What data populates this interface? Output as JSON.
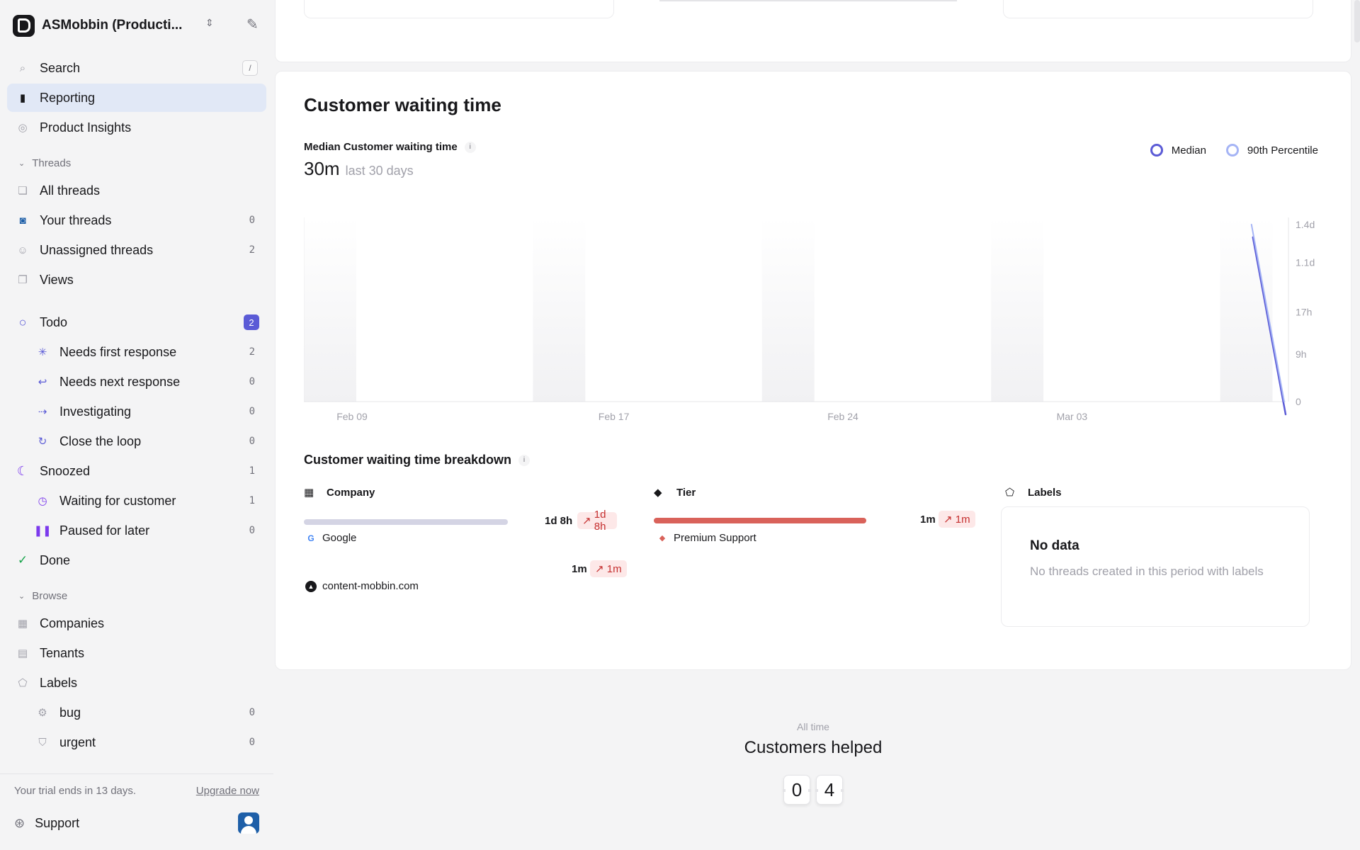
{
  "workspace": {
    "name": "ASMobbin (Producti..."
  },
  "nav": {
    "search": {
      "label": "Search",
      "shortcut": "/"
    },
    "reporting": {
      "label": "Reporting"
    },
    "product_insights": {
      "label": "Product Insights"
    },
    "threads_section": "Threads",
    "all_threads": {
      "label": "All threads"
    },
    "your_threads": {
      "label": "Your threads",
      "count": "0"
    },
    "unassigned_threads": {
      "label": "Unassigned threads",
      "count": "2"
    },
    "views": {
      "label": "Views"
    },
    "todo": {
      "label": "Todo",
      "count": "2"
    },
    "needs_first_response": {
      "label": "Needs first response",
      "count": "2"
    },
    "needs_next_response": {
      "label": "Needs next response",
      "count": "0"
    },
    "investigating": {
      "label": "Investigating",
      "count": "0"
    },
    "close_the_loop": {
      "label": "Close the loop",
      "count": "0"
    },
    "snoozed": {
      "label": "Snoozed",
      "count": "1"
    },
    "waiting_for_customer": {
      "label": "Waiting for customer",
      "count": "1"
    },
    "paused_for_later": {
      "label": "Paused for later",
      "count": "0"
    },
    "done": {
      "label": "Done"
    },
    "browse_section": "Browse",
    "companies": {
      "label": "Companies"
    },
    "tenants": {
      "label": "Tenants"
    },
    "labels": {
      "label": "Labels"
    },
    "bug": {
      "label": "bug",
      "count": "0"
    },
    "urgent": {
      "label": "urgent",
      "count": "0"
    }
  },
  "trial": {
    "text": "Your trial ends in 13 days.",
    "upgrade": "Upgrade now"
  },
  "support": {
    "label": "Support"
  },
  "waiting": {
    "title": "Customer waiting time",
    "metric_label": "Median Customer waiting time",
    "metric_value": "30m",
    "metric_period": "last 30 days",
    "legend_median": "Median",
    "legend_p90": "90th Percentile",
    "colors": {
      "median": "#5b5bd6",
      "p90": "#a5b4f5",
      "company_bar": "#d4d4e4",
      "tier_bar": "#d9625a"
    }
  },
  "chart_data": {
    "type": "line",
    "x_tick_labels": [
      "Feb 09",
      "Feb 17",
      "Feb 24",
      "Mar 03"
    ],
    "y_tick_labels": [
      "1.4d",
      "1.1d",
      "17h",
      "9h",
      "0"
    ],
    "y_tick_hours": [
      33.6,
      26.4,
      17,
      9,
      0
    ],
    "x_range": [
      "Feb 08",
      "Mar 10"
    ],
    "series": [
      {
        "name": "Median",
        "points": [
          {
            "x": "Mar 09",
            "y_hours": 33.6
          },
          {
            "x": "Mar 10",
            "y_hours": 0
          }
        ]
      },
      {
        "name": "90th Percentile",
        "points": [
          {
            "x": "Mar 09",
            "y_hours": 33.6
          },
          {
            "x": "Mar 10",
            "y_hours": 0
          }
        ]
      }
    ],
    "legend_position": "top-right",
    "grid": false
  },
  "breakdown": {
    "title": "Customer waiting time breakdown",
    "company": {
      "header": "Company",
      "rows": [
        {
          "name": "Google",
          "value": "1d 8h",
          "delta": "1d 8h",
          "fraction": 1.0
        },
        {
          "name": "content-mobbin.com",
          "value": "1m",
          "delta": "1m",
          "fraction": 0.0
        }
      ]
    },
    "tier": {
      "header": "Tier",
      "rows": [
        {
          "name": "Premium Support",
          "value": "1m",
          "delta": "1m",
          "fraction": 1.0
        }
      ]
    },
    "labels": {
      "header": "Labels",
      "no_data_title": "No data",
      "no_data_desc": "No threads created in this period with labels"
    }
  },
  "helped": {
    "period": "All time",
    "title": "Customers helped",
    "digits": [
      "0",
      "4"
    ]
  }
}
